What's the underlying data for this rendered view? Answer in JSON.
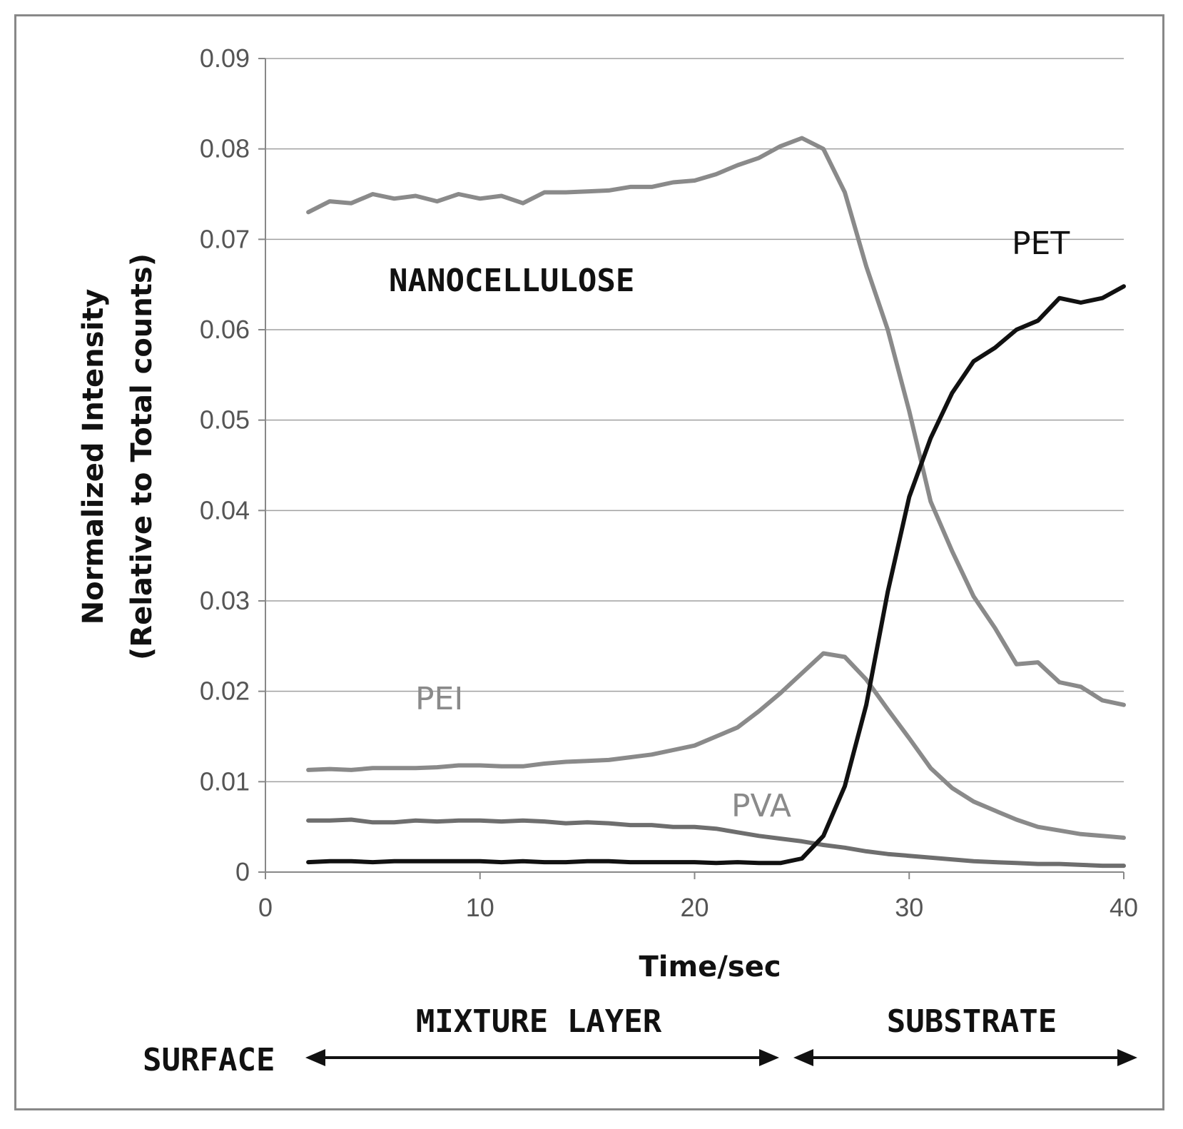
{
  "chart_data": {
    "type": "line",
    "xlabel": "Time/sec",
    "ylabel_line1": "Normalized Intensity",
    "ylabel_line2": "(Relative to Total counts)",
    "xlim": [
      0,
      40
    ],
    "ylim": [
      0,
      0.09
    ],
    "x_ticks": [
      0,
      10,
      20,
      30,
      40
    ],
    "x_tick_labels": [
      "0",
      "10",
      "20",
      "30",
      "40"
    ],
    "y_ticks": [
      0,
      0.01,
      0.02,
      0.03,
      0.04,
      0.05,
      0.06,
      0.07,
      0.08,
      0.09
    ],
    "y_tick_labels": [
      "0",
      "0.01",
      "0.02",
      "0.03",
      "0.04",
      "0.05",
      "0.06",
      "0.07",
      "0.08",
      "0.09"
    ],
    "grid": true,
    "series": [
      {
        "name": "NANOCELLULOSE",
        "color": "#8a8a8a",
        "points": [
          [
            2,
            0.073
          ],
          [
            3,
            0.0742
          ],
          [
            4,
            0.074
          ],
          [
            5,
            0.075
          ],
          [
            6,
            0.0745
          ],
          [
            7,
            0.0748
          ],
          [
            8,
            0.0742
          ],
          [
            9,
            0.075
          ],
          [
            10,
            0.0745
          ],
          [
            11,
            0.0748
          ],
          [
            12,
            0.074
          ],
          [
            13,
            0.0752
          ],
          [
            14,
            0.0752
          ],
          [
            15,
            0.0753
          ],
          [
            16,
            0.0754
          ],
          [
            17,
            0.0758
          ],
          [
            18,
            0.0758
          ],
          [
            19,
            0.0763
          ],
          [
            20,
            0.0765
          ],
          [
            21,
            0.0772
          ],
          [
            22,
            0.0782
          ],
          [
            23,
            0.079
          ],
          [
            24,
            0.0803
          ],
          [
            25,
            0.0812
          ],
          [
            26,
            0.08
          ],
          [
            27,
            0.0752
          ],
          [
            28,
            0.067
          ],
          [
            29,
            0.06
          ],
          [
            30,
            0.051
          ],
          [
            31,
            0.041
          ],
          [
            32,
            0.0355
          ],
          [
            33,
            0.0305
          ],
          [
            34,
            0.027
          ],
          [
            35,
            0.023
          ],
          [
            36,
            0.0232
          ],
          [
            37,
            0.021
          ],
          [
            38,
            0.0205
          ],
          [
            39,
            0.019
          ],
          [
            40,
            0.0185
          ]
        ]
      },
      {
        "name": "PEI",
        "color": "#8a8a8a",
        "points": [
          [
            2,
            0.0113
          ],
          [
            3,
            0.0114
          ],
          [
            4,
            0.0113
          ],
          [
            5,
            0.0115
          ],
          [
            6,
            0.0115
          ],
          [
            7,
            0.0115
          ],
          [
            8,
            0.0116
          ],
          [
            9,
            0.0118
          ],
          [
            10,
            0.0118
          ],
          [
            11,
            0.0117
          ],
          [
            12,
            0.0117
          ],
          [
            13,
            0.012
          ],
          [
            14,
            0.0122
          ],
          [
            15,
            0.0123
          ],
          [
            16,
            0.0124
          ],
          [
            17,
            0.0127
          ],
          [
            18,
            0.013
          ],
          [
            19,
            0.0135
          ],
          [
            20,
            0.014
          ],
          [
            21,
            0.015
          ],
          [
            22,
            0.016
          ],
          [
            23,
            0.0178
          ],
          [
            24,
            0.0198
          ],
          [
            25,
            0.022
          ],
          [
            26,
            0.0242
          ],
          [
            27,
            0.0238
          ],
          [
            28,
            0.0213
          ],
          [
            29,
            0.018
          ],
          [
            30,
            0.0148
          ],
          [
            31,
            0.0115
          ],
          [
            32,
            0.0093
          ],
          [
            33,
            0.0078
          ],
          [
            34,
            0.0068
          ],
          [
            35,
            0.0058
          ],
          [
            36,
            0.005
          ],
          [
            37,
            0.0046
          ],
          [
            38,
            0.0042
          ],
          [
            39,
            0.004
          ],
          [
            40,
            0.0038
          ]
        ]
      },
      {
        "name": "PVA",
        "color": "#6e6e6e",
        "points": [
          [
            2,
            0.0057
          ],
          [
            3,
            0.0057
          ],
          [
            4,
            0.0058
          ],
          [
            5,
            0.0055
          ],
          [
            6,
            0.0055
          ],
          [
            7,
            0.0057
          ],
          [
            8,
            0.0056
          ],
          [
            9,
            0.0057
          ],
          [
            10,
            0.0057
          ],
          [
            11,
            0.0056
          ],
          [
            12,
            0.0057
          ],
          [
            13,
            0.0056
          ],
          [
            14,
            0.0054
          ],
          [
            15,
            0.0055
          ],
          [
            16,
            0.0054
          ],
          [
            17,
            0.0052
          ],
          [
            18,
            0.0052
          ],
          [
            19,
            0.005
          ],
          [
            20,
            0.005
          ],
          [
            21,
            0.0048
          ],
          [
            22,
            0.0044
          ],
          [
            23,
            0.004
          ],
          [
            24,
            0.0037
          ],
          [
            25,
            0.0034
          ],
          [
            26,
            0.003
          ],
          [
            27,
            0.0027
          ],
          [
            28,
            0.0023
          ],
          [
            29,
            0.002
          ],
          [
            30,
            0.0018
          ],
          [
            31,
            0.0016
          ],
          [
            32,
            0.0014
          ],
          [
            33,
            0.0012
          ],
          [
            34,
            0.0011
          ],
          [
            35,
            0.001
          ],
          [
            36,
            0.0009
          ],
          [
            37,
            0.0009
          ],
          [
            38,
            0.0008
          ],
          [
            39,
            0.0007
          ],
          [
            40,
            0.0007
          ]
        ]
      },
      {
        "name": "PET",
        "color": "#111111",
        "points": [
          [
            2,
            0.0011
          ],
          [
            3,
            0.0012
          ],
          [
            4,
            0.0012
          ],
          [
            5,
            0.0011
          ],
          [
            6,
            0.0012
          ],
          [
            7,
            0.0012
          ],
          [
            8,
            0.0012
          ],
          [
            9,
            0.0012
          ],
          [
            10,
            0.0012
          ],
          [
            11,
            0.0011
          ],
          [
            12,
            0.0012
          ],
          [
            13,
            0.0011
          ],
          [
            14,
            0.0011
          ],
          [
            15,
            0.0012
          ],
          [
            16,
            0.0012
          ],
          [
            17,
            0.0011
          ],
          [
            18,
            0.0011
          ],
          [
            19,
            0.0011
          ],
          [
            20,
            0.0011
          ],
          [
            21,
            0.001
          ],
          [
            22,
            0.0011
          ],
          [
            23,
            0.001
          ],
          [
            24,
            0.001
          ],
          [
            25,
            0.0015
          ],
          [
            26,
            0.004
          ],
          [
            27,
            0.0095
          ],
          [
            28,
            0.0185
          ],
          [
            29,
            0.031
          ],
          [
            30,
            0.0415
          ],
          [
            31,
            0.048
          ],
          [
            32,
            0.053
          ],
          [
            33,
            0.0565
          ],
          [
            34,
            0.058
          ],
          [
            35,
            0.06
          ],
          [
            36,
            0.061
          ],
          [
            37,
            0.0635
          ],
          [
            38,
            0.063
          ],
          [
            39,
            0.0635
          ],
          [
            40,
            0.0648
          ]
        ]
      }
    ],
    "series_labels": [
      {
        "text": "NANOCELLULOSE",
        "style": "dark"
      },
      {
        "text": "PET",
        "style": "dark"
      },
      {
        "text": "PEI",
        "style": "gray"
      },
      {
        "text": "PVA",
        "style": "gray"
      }
    ],
    "annotations": [
      {
        "text": "MIXTURE LAYER"
      },
      {
        "text": "SUBSTRATE"
      },
      {
        "text": "SURFACE"
      }
    ]
  }
}
